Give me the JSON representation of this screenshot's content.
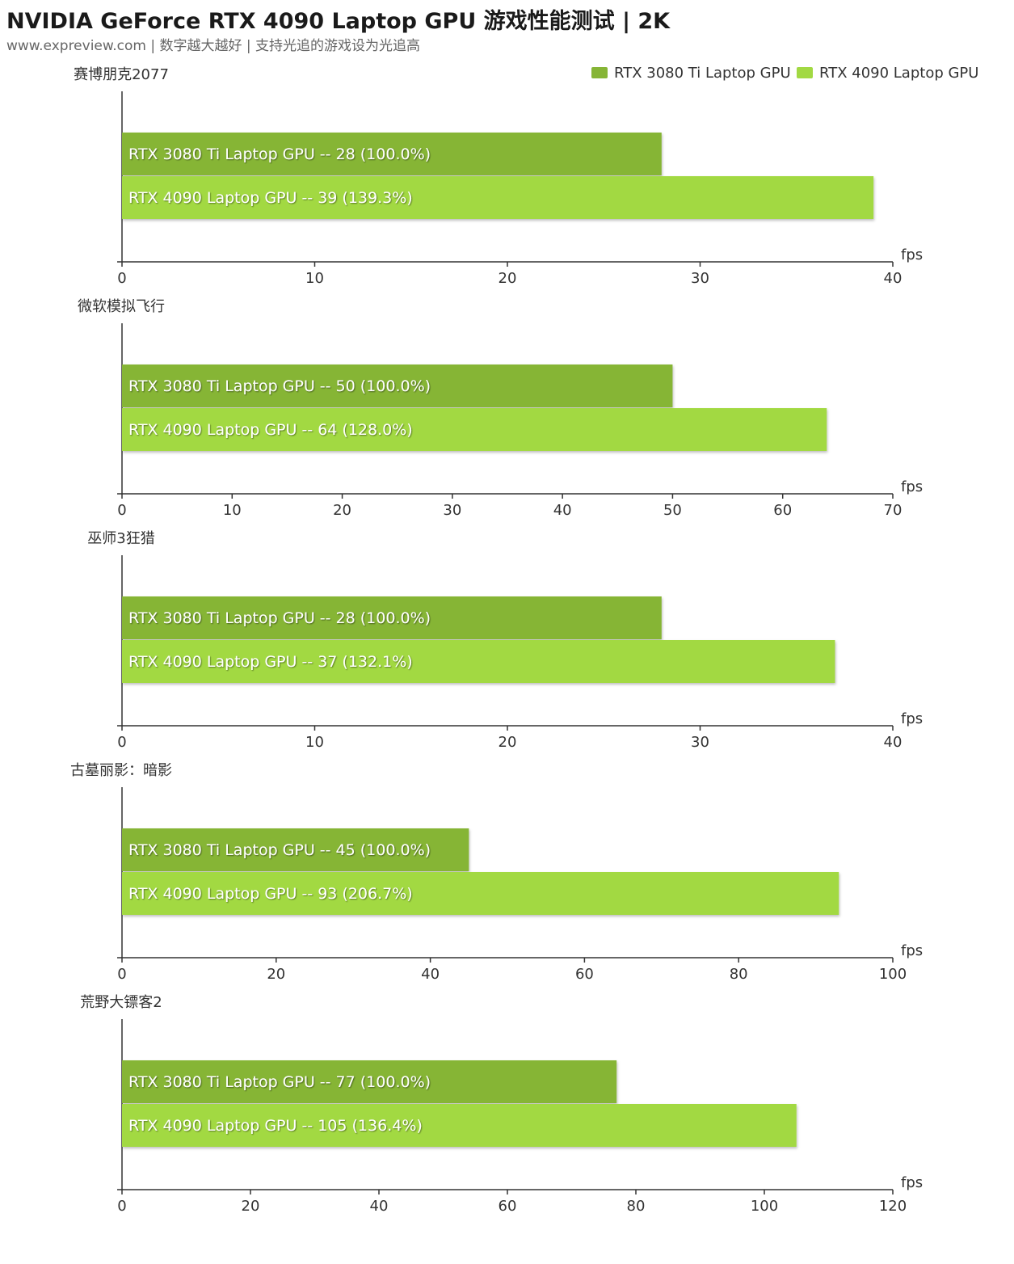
{
  "header": {
    "title": "NVIDIA GeForce RTX 4090 Laptop GPU 游戏性能测试 | 2K",
    "subtitle": "www.expreview.com | 数字越大越好 | 支持光追的游戏设为光追高"
  },
  "colors": {
    "series1": "#86b536",
    "series2": "#a2d943"
  },
  "chart_data": [
    {
      "type": "bar",
      "title": "赛博朋克2077",
      "xlabel": "fps",
      "xlim": [
        0,
        40
      ],
      "ticks": [
        0,
        10,
        20,
        30,
        40
      ],
      "legend": "top-right",
      "series": [
        {
          "name": "RTX 3080 Ti Laptop GPU",
          "value": 28,
          "label": "28 (100.0%)"
        },
        {
          "name": "RTX 4090 Laptop GPU",
          "value": 39,
          "label": "39 (139.3%)"
        }
      ]
    },
    {
      "type": "bar",
      "title": "微软模拟飞行",
      "xlabel": "fps",
      "xlim": [
        0,
        70
      ],
      "ticks": [
        0,
        10,
        20,
        30,
        40,
        50,
        60,
        70
      ],
      "series": [
        {
          "name": "RTX 3080 Ti Laptop GPU",
          "value": 50,
          "label": "50 (100.0%)"
        },
        {
          "name": "RTX 4090 Laptop GPU",
          "value": 64,
          "label": "64 (128.0%)"
        }
      ]
    },
    {
      "type": "bar",
      "title": "巫师3狂猎",
      "xlabel": "fps",
      "xlim": [
        0,
        40
      ],
      "ticks": [
        0,
        10,
        20,
        30,
        40
      ],
      "series": [
        {
          "name": "RTX 3080 Ti Laptop GPU",
          "value": 28,
          "label": "28 (100.0%)"
        },
        {
          "name": "RTX 4090 Laptop GPU",
          "value": 37,
          "label": "37 (132.1%)"
        }
      ]
    },
    {
      "type": "bar",
      "title": "古墓丽影：暗影",
      "xlabel": "fps",
      "xlim": [
        0,
        100
      ],
      "ticks": [
        0,
        20,
        40,
        60,
        80,
        100
      ],
      "series": [
        {
          "name": "RTX 3080 Ti Laptop GPU",
          "value": 45,
          "label": "45 (100.0%)"
        },
        {
          "name": "RTX 4090 Laptop GPU",
          "value": 93,
          "label": "93 (206.7%)"
        }
      ]
    },
    {
      "type": "bar",
      "title": "荒野大镖客2",
      "xlabel": "fps",
      "xlim": [
        0,
        120
      ],
      "ticks": [
        0,
        20,
        40,
        60,
        80,
        100,
        120
      ],
      "series": [
        {
          "name": "RTX 3080 Ti Laptop GPU",
          "value": 77,
          "label": "77 (100.0%)"
        },
        {
          "name": "RTX 4090 Laptop GPU",
          "value": 105,
          "label": "105 (136.4%)"
        }
      ]
    }
  ]
}
